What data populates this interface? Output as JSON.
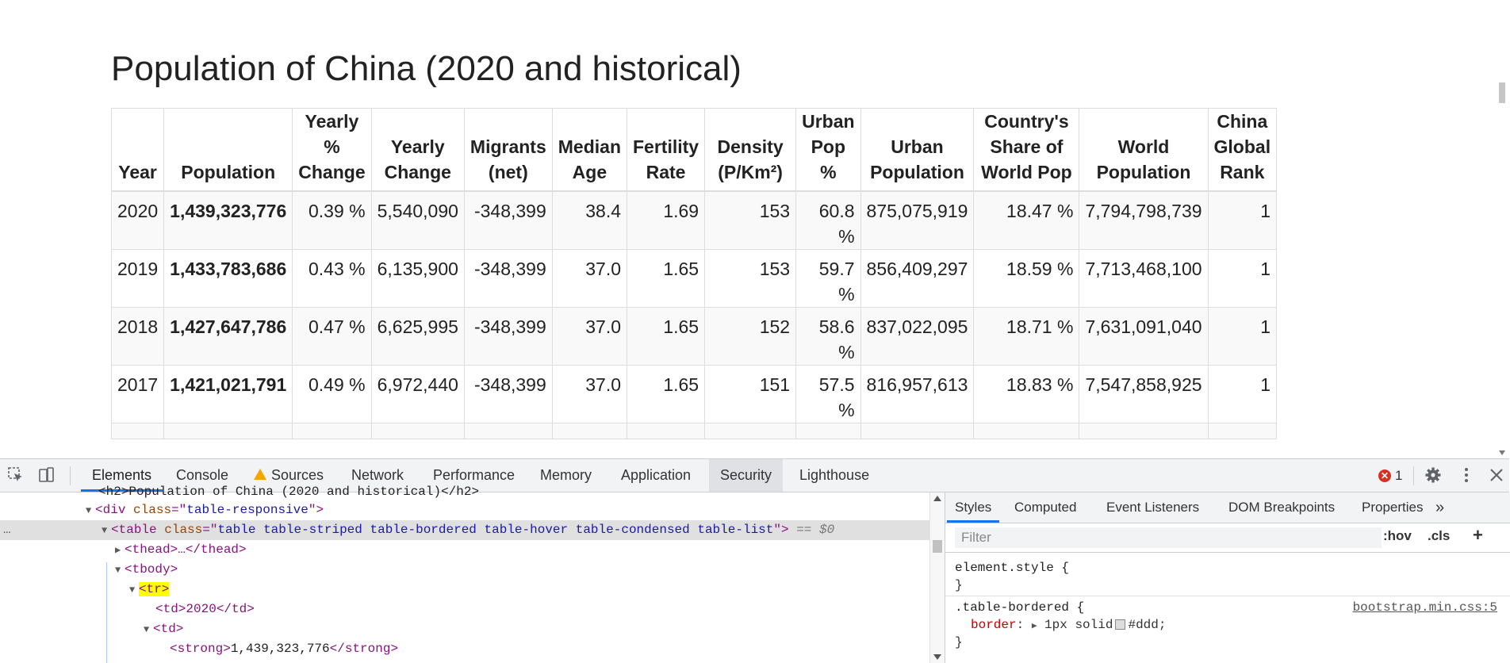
{
  "page": {
    "title": "Population of China (2020 and historical)",
    "table": {
      "headers": [
        "Year",
        "Population",
        "Yearly % Change",
        "Yearly Change",
        "Migrants (net)",
        "Median Age",
        "Fertility Rate",
        "Density (P/Km²)",
        "Urban Pop %",
        "Urban Population",
        "Country's Share of World Pop",
        "World Population",
        "China Global Rank"
      ],
      "rows": [
        [
          "2020",
          "1,439,323,776",
          "0.39 %",
          "5,540,090",
          "-348,399",
          "38.4",
          "1.69",
          "153",
          "60.8 %",
          "875,075,919",
          "18.47 %",
          "7,794,798,739",
          "1"
        ],
        [
          "2019",
          "1,433,783,686",
          "0.43 %",
          "6,135,900",
          "-348,399",
          "37.0",
          "1.65",
          "153",
          "59.7 %",
          "856,409,297",
          "18.59 %",
          "7,713,468,100",
          "1"
        ],
        [
          "2018",
          "1,427,647,786",
          "0.47 %",
          "6,625,995",
          "-348,399",
          "37.0",
          "1.65",
          "152",
          "58.6 %",
          "837,022,095",
          "18.71 %",
          "7,631,091,040",
          "1"
        ],
        [
          "2017",
          "1,421,021,791",
          "0.49 %",
          "6,972,440",
          "-348,399",
          "37.0",
          "1.65",
          "151",
          "57.5 %",
          "816,957,613",
          "18.83 %",
          "7,547,858,925",
          "1"
        ]
      ]
    }
  },
  "devtools": {
    "tabs": [
      "Elements",
      "Console",
      "Sources",
      "Network",
      "Performance",
      "Memory",
      "Application",
      "Security",
      "Lighthouse"
    ],
    "error_count": "1",
    "elements": {
      "partial_line": "<h2>Population of China (2020 and historical)</h2>",
      "div_tag": "div",
      "div_attr": "class",
      "div_class": "table-responsive",
      "table_tag": "table",
      "table_attr": "class",
      "table_class": "table table-striped table-bordered table-hover table-condensed table-list",
      "eq_marker": "== $0",
      "thead": "<thead>…</thead>",
      "tbody": "<tbody>",
      "tr": "<tr>",
      "td_2020": "<td>2020</td>",
      "td_open": "<td>",
      "strong_open": "<strong>",
      "strong_text": "1,439,323,776",
      "strong_close": "</strong>"
    },
    "styles": {
      "tabs": [
        "Styles",
        "Computed",
        "Event Listeners",
        "DOM Breakpoints",
        "Properties"
      ],
      "more": "»",
      "filter_placeholder": "Filter",
      "hov": ":hov",
      "cls": ".cls",
      "plus": "+",
      "element_style": "element.style {",
      "close_brace": "}",
      "rule_selector": ".table-bordered {",
      "rule_source": "bootstrap.min.css:5",
      "prop_name": "border",
      "prop_value_a": "1px solid",
      "prop_value_b": "#ddd;"
    }
  }
}
